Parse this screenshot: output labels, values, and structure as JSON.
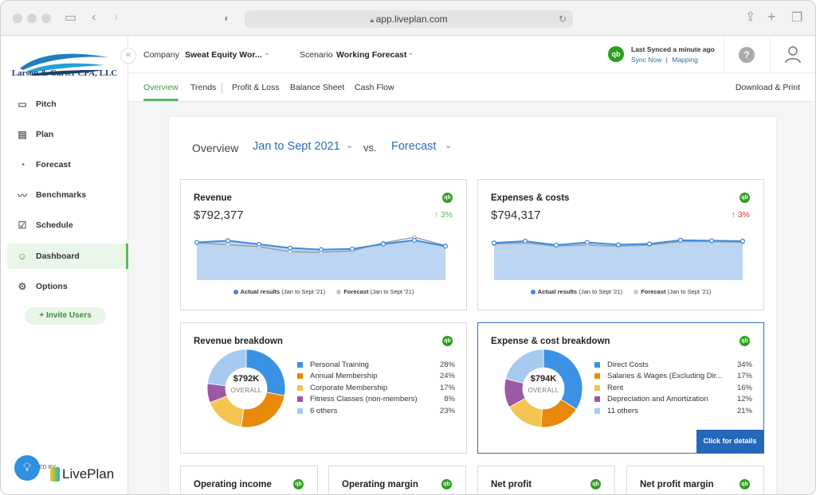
{
  "browser": {
    "url": "app.liveplan.com"
  },
  "brand": {
    "org_name": "Larson & Carter CPA, LLC",
    "powered_by": "ED BY",
    "liveplan": "LivePlan",
    "accent": "#5cb85c",
    "blue": "#2d6db5"
  },
  "sidebar": {
    "items": [
      {
        "label": "Pitch",
        "icon": "monitor-icon"
      },
      {
        "label": "Plan",
        "icon": "document-icon"
      },
      {
        "label": "Forecast",
        "icon": "piggy-bank-icon"
      },
      {
        "label": "Benchmarks",
        "icon": "trend-line-icon"
      },
      {
        "label": "Schedule",
        "icon": "checkbox-icon"
      },
      {
        "label": "Dashboard",
        "icon": "dashboard-icon",
        "active": true
      },
      {
        "label": "Options",
        "icon": "gear-icon"
      }
    ],
    "invite_label": "Invite Users",
    "collapse_glyph": "«"
  },
  "topbar": {
    "company_label": "Company",
    "company_value": "Sweat Equity Wor...",
    "scenario_label": "Scenario",
    "scenario_value": "Working Forecast",
    "sync_status": "Last Synced a minute ago",
    "sync_now": "Sync Now",
    "sync_sep": "|",
    "mapping": "Mapping",
    "qb_glyph": "qb",
    "help_glyph": "?"
  },
  "tabs": {
    "items": [
      "Overview",
      "Trends",
      "Profit & Loss",
      "Balance Sheet",
      "Cash Flow"
    ],
    "active": "Overview",
    "download": "Download & Print"
  },
  "overview": {
    "title": "Overview",
    "period": "Jan to Sept 2021",
    "vs": "vs.",
    "compare": "Forecast"
  },
  "revenue": {
    "title": "Revenue",
    "amount": "$792,377",
    "change": "3%",
    "direction": "up",
    "legend_actual": "Actual results",
    "legend_actual_period": "(Jan to Sept '21)",
    "legend_forecast": "Forecast",
    "legend_forecast_period": "(Jan to Sept '21)",
    "chart_data": {
      "type": "area",
      "series": [
        {
          "name": "Actual results",
          "values": [
            0.62,
            0.7,
            0.54,
            0.37,
            0.3,
            0.33,
            0.55,
            0.72,
            0.45
          ]
        },
        {
          "name": "Forecast",
          "values": [
            0.6,
            0.52,
            0.43,
            0.2,
            0.18,
            0.24,
            0.6,
            0.85,
            0.48
          ]
        }
      ]
    }
  },
  "expenses": {
    "title": "Expenses & costs",
    "amount": "$794,317",
    "change": "3%",
    "direction": "up",
    "legend_actual": "Actual results",
    "legend_actual_period": "(Jan to Sept '21)",
    "legend_forecast": "Forecast",
    "legend_forecast_period": "(Jan to Sept '21)",
    "chart_data": {
      "type": "area",
      "series": [
        {
          "name": "Actual results",
          "values": [
            0.6,
            0.68,
            0.5,
            0.62,
            0.52,
            0.56,
            0.72,
            0.7,
            0.68
          ]
        },
        {
          "name": "Forecast",
          "values": [
            0.55,
            0.6,
            0.46,
            0.5,
            0.45,
            0.5,
            0.66,
            0.66,
            0.62
          ]
        }
      ]
    }
  },
  "revenue_breakdown": {
    "title": "Revenue breakdown",
    "center_value": "$792K",
    "center_label": "OVERALL",
    "chart_data": {
      "type": "pie",
      "categories": [
        "Personal Training",
        "Annual Membership",
        "Corporate Membership",
        "Fitness Classes (non-members)",
        "6 others"
      ],
      "values": [
        28,
        24,
        17,
        8,
        23
      ],
      "labels": [
        "28%",
        "24%",
        "17%",
        "8%",
        "23%"
      ],
      "colors": [
        "#3b91e3",
        "#e8890c",
        "#f6c453",
        "#9b59a6",
        "#a6c9f0"
      ]
    }
  },
  "expense_breakdown": {
    "title": "Expense & cost breakdown",
    "center_value": "$794K",
    "center_label": "OVERALL",
    "details_button": "Click for details",
    "chart_data": {
      "type": "pie",
      "categories": [
        "Direct Costs",
        "Salaries & Wages (Excluding Dir...",
        "Rent",
        "Depreciation and Amortization",
        "11 others"
      ],
      "values": [
        34,
        17,
        16,
        12,
        21
      ],
      "labels": [
        "34%",
        "17%",
        "16%",
        "12%",
        "21%"
      ],
      "colors": [
        "#3b91e3",
        "#e8890c",
        "#f6c453",
        "#9b59a6",
        "#a6c9f0"
      ]
    }
  },
  "bottom_cards": [
    "Operating income",
    "Operating margin",
    "Net profit",
    "Net profit margin"
  ]
}
